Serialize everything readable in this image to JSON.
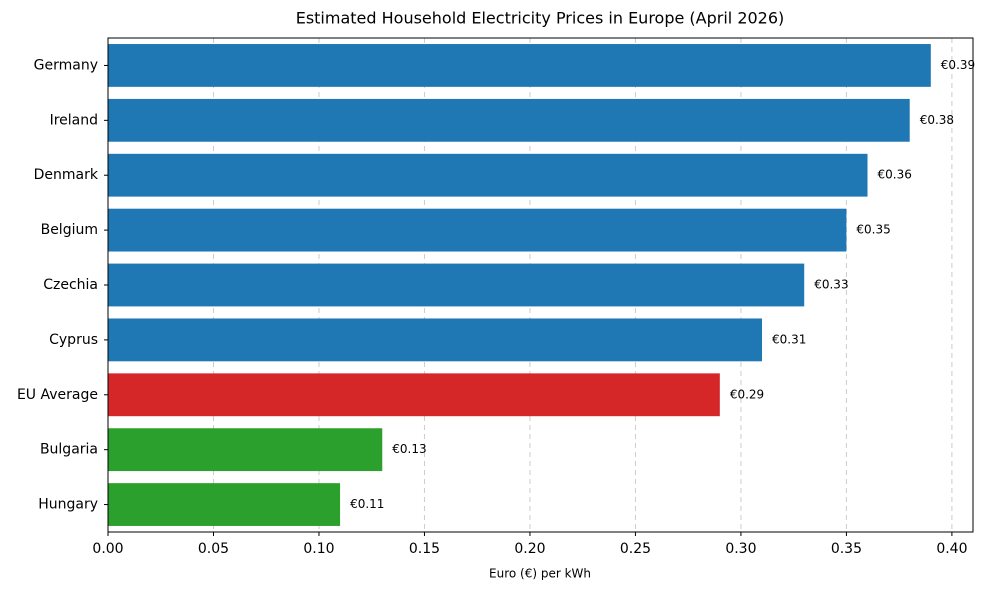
{
  "chart_data": {
    "type": "barh",
    "title": "Estimated Household Electricity Prices in Europe (April 2026)",
    "xlabel": "Euro (€) per kWh",
    "categories": [
      "Germany",
      "Ireland",
      "Denmark",
      "Belgium",
      "Czechia",
      "Cyprus",
      "EU Average",
      "Bulgaria",
      "Hungary"
    ],
    "values": [
      0.39,
      0.38,
      0.36,
      0.35,
      0.33,
      0.31,
      0.29,
      0.13,
      0.11
    ],
    "value_labels": [
      "€0.39",
      "€0.38",
      "€0.36",
      "€0.35",
      "€0.33",
      "€0.31",
      "€0.29",
      "€0.13",
      "€0.11"
    ],
    "colors": [
      "#1f77b4",
      "#1f77b4",
      "#1f77b4",
      "#1f77b4",
      "#1f77b4",
      "#1f77b4",
      "#d62728",
      "#2ca02c",
      "#2ca02c"
    ],
    "xlim": [
      0,
      0.41
    ],
    "xticks": [
      {
        "value": 0,
        "label": "0.00"
      },
      0.05,
      {
        "value": 0.1,
        "label": "0.10"
      },
      0.15,
      {
        "value": 0.2,
        "label": "0.20"
      },
      0.25,
      {
        "value": 0.3,
        "label": "0.30"
      },
      0.35,
      {
        "value": 0.4,
        "label": "0.40"
      }
    ],
    "grid": true
  }
}
